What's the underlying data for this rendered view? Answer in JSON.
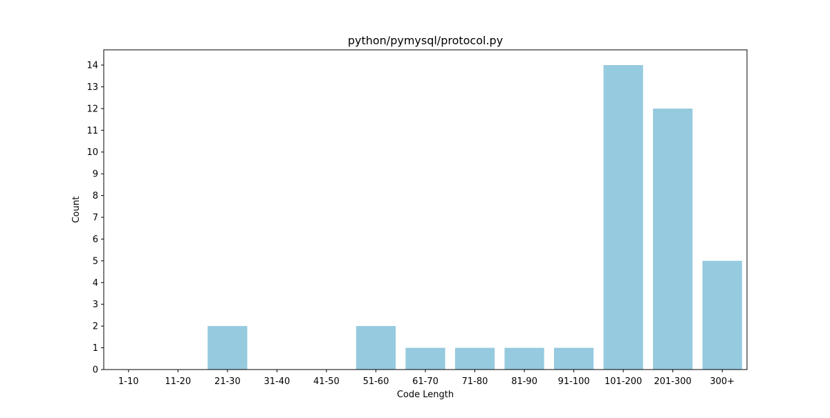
{
  "chart_data": {
    "type": "bar",
    "title": "python/pymysql/protocol.py",
    "xlabel": "Code Length",
    "ylabel": "Count",
    "categories": [
      "1-10",
      "11-20",
      "21-30",
      "31-40",
      "41-50",
      "51-60",
      "61-70",
      "71-80",
      "81-90",
      "91-100",
      "101-200",
      "201-300",
      "300+"
    ],
    "values": [
      0,
      0,
      2,
      0,
      0,
      2,
      1,
      1,
      1,
      1,
      14,
      12,
      5
    ],
    "ylim": [
      0,
      14.7
    ],
    "yticks": [
      0,
      1,
      2,
      3,
      4,
      5,
      6,
      7,
      8,
      9,
      10,
      11,
      12,
      13,
      14
    ],
    "grid": false,
    "colors": {
      "bar": "#96cadf",
      "axis": "#000000",
      "background": "#ffffff"
    }
  }
}
